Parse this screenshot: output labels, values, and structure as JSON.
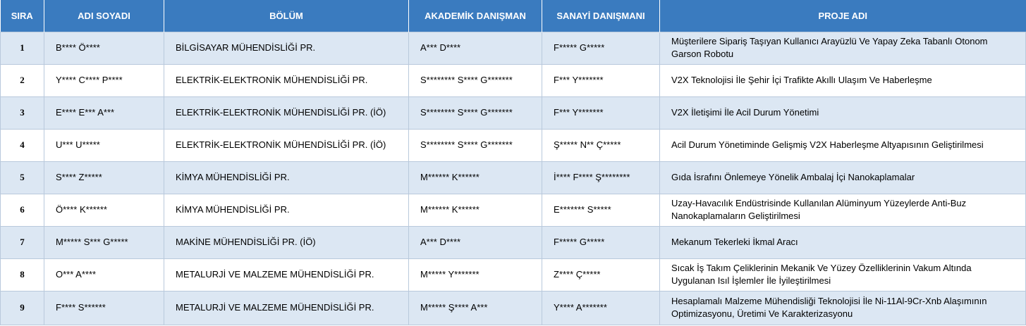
{
  "headers": [
    "SIRA",
    "ADI SOYADI",
    "BÖLÜM",
    "AKADEMİK DANIŞMAN",
    "SANAYİ DANIŞMANI",
    "PROJE ADI"
  ],
  "rows": [
    [
      "1",
      "B****  Ö****",
      "BİLGİSAYAR MÜHENDİSLİĞİ PR.",
      "A***  D****",
      "F*****  G*****",
      "Müşterilere Sipariş Taşıyan Kullanıcı Arayüzlü Ve Yapay Zeka Tabanlı Otonom Garson Robotu"
    ],
    [
      "2",
      "Y****  C****  P****",
      "ELEKTRİK-ELEKTRONİK MÜHENDİSLİĞİ PR.",
      "S********  S****  G*******",
      "F***  Y*******",
      "V2X Teknolojisi İle Şehir İçi Trafikte Akıllı Ulaşım Ve Haberleşme"
    ],
    [
      "3",
      "E****  E***  A***",
      "ELEKTRİK-ELEKTRONİK MÜHENDİSLİĞİ PR. (İÖ)",
      "S********  S****  G*******",
      "F***  Y*******",
      "V2X İletişimi İle Acil Durum Yönetimi"
    ],
    [
      "4",
      "U***  U*****",
      "ELEKTRİK-ELEKTRONİK MÜHENDİSLİĞİ PR. (İÖ)",
      "S********  S****  G*******",
      "Ş*****  N**  Ç*****",
      "Acil Durum Yönetiminde Gelişmiş V2X Haberleşme Altyapısının Geliştirilmesi"
    ],
    [
      "5",
      "S****  Z*****",
      "KİMYA MÜHENDİSLİĞİ PR.",
      "M******  K******",
      "İ****  F****  Ş********",
      "Gıda İsrafını Önlemeye Yönelik Ambalaj İçi Nanokaplamalar"
    ],
    [
      "6",
      "Ö****  K******",
      "KİMYA MÜHENDİSLİĞİ PR.",
      "M******  K******",
      "E*******  S*****",
      "Uzay-Havacılık Endüstrisinde Kullanılan Alüminyum Yüzeylerde Anti-Buz Nanokaplamaların Geliştirilmesi"
    ],
    [
      "7",
      "M*****  S***  G*****",
      "MAKİNE MÜHENDİSLİĞİ PR. (İÖ)",
      "A***  D****",
      "F*****  G*****",
      "Mekanum Tekerleki İkmal Aracı"
    ],
    [
      "8",
      "O***  A****",
      "METALURJİ VE MALZEME MÜHENDİSLİĞİ PR.",
      "M*****  Y*******",
      "Z****  Ç*****",
      "Sıcak İş Takım Çeliklerinin Mekanik Ve Yüzey Özelliklerinin Vakum Altında Uygulanan Isıl İşlemler İle İyileştirilmesi"
    ],
    [
      "9",
      "F****  S******",
      "METALURJİ VE MALZEME MÜHENDİSLİĞİ PR.",
      "M*****  Ş****  A***",
      "Y****  A*******",
      "Hesaplamalı Malzeme Mühendisliği Teknolojisi İle Ni-11Al-9Cr-Xnb Alaşımının Optimizasyonu, Üretimi Ve Karakterizasyonu"
    ]
  ]
}
